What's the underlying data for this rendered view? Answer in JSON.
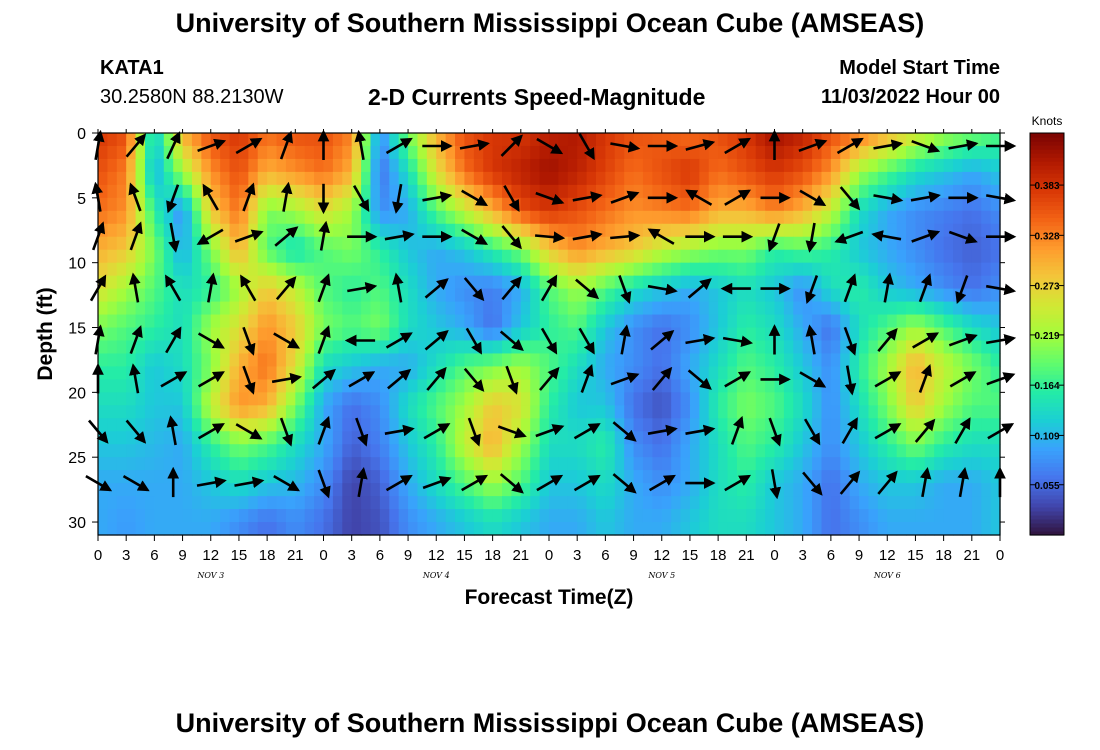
{
  "header": {
    "title": "University of Southern Mississippi Ocean Cube (AMSEAS)",
    "station": "KATA1",
    "coords": "30.2580N  88.2130W",
    "product": "2-D Currents Speed-Magnitude",
    "start_label": "Model Start Time",
    "start_value": "11/03/2022 Hour 00"
  },
  "footer": {
    "title": "University of Southern Mississippi Ocean Cube (AMSEAS)"
  },
  "chart_data": {
    "type": "heatmap",
    "title": "2-D Currents Speed-Magnitude",
    "xlabel": "Forecast Time(Z)",
    "ylabel": "Depth (ft)",
    "x_tick_labels": [
      "0",
      "3",
      "6",
      "9",
      "12",
      "15",
      "18",
      "21",
      "0",
      "3",
      "6",
      "9",
      "12",
      "15",
      "18",
      "21",
      "0",
      "3",
      "6",
      "9",
      "12",
      "15",
      "18",
      "21",
      "0",
      "3",
      "6",
      "9",
      "12",
      "15",
      "18",
      "21",
      "0"
    ],
    "day_labels": [
      "NOV 3",
      "NOV 4",
      "NOV 5",
      "NOV 6"
    ],
    "x_range_hours": [
      0,
      96
    ],
    "y_ticks": [
      0,
      5,
      10,
      15,
      20,
      25,
      30
    ],
    "ylim": [
      0,
      31
    ],
    "y_inverted": true,
    "colorbar": {
      "unit": "Knots",
      "ticks": [
        0.055,
        0.109,
        0.164,
        0.219,
        0.273,
        0.328,
        0.383
      ],
      "range": [
        0.0,
        0.44
      ],
      "colors": [
        "#30123b",
        "#4145ab",
        "#4675ed",
        "#39a2fc",
        "#1bcfd4",
        "#24eca6",
        "#61fc6c",
        "#a4fc3b",
        "#d1e834",
        "#f3c63a",
        "#fe9b2d",
        "#f36315",
        "#d93806",
        "#b11901",
        "#7a0402"
      ]
    },
    "speed_grid_depths_ft": [
      0,
      3,
      6,
      9,
      12,
      15,
      18,
      21,
      24,
      27,
      30
    ],
    "speed_grid_hours": [
      0,
      3,
      6,
      9,
      12,
      15,
      18,
      21,
      24,
      27,
      30,
      33,
      36,
      39,
      42,
      45,
      48,
      51,
      54,
      57,
      60,
      63,
      66,
      69,
      72,
      75,
      78,
      81,
      84,
      87,
      90,
      93,
      96
    ],
    "speed": [
      [
        0.38,
        0.36,
        0.12,
        0.3,
        0.36,
        0.38,
        0.34,
        0.36,
        0.36,
        0.33,
        0.08,
        0.2,
        0.3,
        0.36,
        0.38,
        0.38,
        0.4,
        0.41,
        0.38,
        0.36,
        0.35,
        0.34,
        0.36,
        0.38,
        0.42,
        0.4,
        0.36,
        0.34,
        0.3,
        0.26,
        0.22,
        0.2,
        0.18
      ],
      [
        0.36,
        0.33,
        0.1,
        0.22,
        0.32,
        0.36,
        0.3,
        0.32,
        0.34,
        0.3,
        0.06,
        0.14,
        0.26,
        0.34,
        0.38,
        0.4,
        0.42,
        0.4,
        0.37,
        0.34,
        0.36,
        0.38,
        0.34,
        0.36,
        0.38,
        0.36,
        0.32,
        0.22,
        0.18,
        0.14,
        0.12,
        0.1,
        0.12
      ],
      [
        0.34,
        0.32,
        0.16,
        0.08,
        0.28,
        0.34,
        0.2,
        0.22,
        0.26,
        0.22,
        0.08,
        0.1,
        0.18,
        0.24,
        0.3,
        0.36,
        0.38,
        0.36,
        0.34,
        0.32,
        0.33,
        0.34,
        0.3,
        0.3,
        0.33,
        0.3,
        0.24,
        0.14,
        0.1,
        0.08,
        0.07,
        0.06,
        0.08
      ],
      [
        0.3,
        0.28,
        0.2,
        0.1,
        0.2,
        0.3,
        0.18,
        0.14,
        0.18,
        0.2,
        0.16,
        0.12,
        0.1,
        0.12,
        0.16,
        0.2,
        0.28,
        0.32,
        0.3,
        0.28,
        0.24,
        0.22,
        0.2,
        0.2,
        0.16,
        0.18,
        0.16,
        0.12,
        0.1,
        0.08,
        0.06,
        0.05,
        0.06
      ],
      [
        0.26,
        0.22,
        0.18,
        0.14,
        0.16,
        0.22,
        0.28,
        0.24,
        0.18,
        0.16,
        0.18,
        0.14,
        0.1,
        0.08,
        0.07,
        0.1,
        0.18,
        0.22,
        0.18,
        0.14,
        0.12,
        0.1,
        0.12,
        0.14,
        0.12,
        0.08,
        0.14,
        0.16,
        0.12,
        0.1,
        0.08,
        0.06,
        0.08
      ],
      [
        0.2,
        0.18,
        0.16,
        0.14,
        0.22,
        0.26,
        0.32,
        0.28,
        0.2,
        0.18,
        0.2,
        0.14,
        0.12,
        0.1,
        0.06,
        0.12,
        0.16,
        0.18,
        0.12,
        0.08,
        0.06,
        0.08,
        0.12,
        0.16,
        0.14,
        0.1,
        0.06,
        0.14,
        0.18,
        0.22,
        0.18,
        0.14,
        0.12
      ],
      [
        0.16,
        0.16,
        0.12,
        0.14,
        0.2,
        0.3,
        0.34,
        0.26,
        0.14,
        0.12,
        0.1,
        0.1,
        0.14,
        0.18,
        0.2,
        0.22,
        0.18,
        0.14,
        0.1,
        0.08,
        0.06,
        0.1,
        0.14,
        0.18,
        0.16,
        0.12,
        0.08,
        0.16,
        0.22,
        0.3,
        0.24,
        0.2,
        0.16
      ],
      [
        0.14,
        0.14,
        0.12,
        0.12,
        0.24,
        0.32,
        0.3,
        0.2,
        0.1,
        0.06,
        0.08,
        0.14,
        0.18,
        0.22,
        0.28,
        0.26,
        0.16,
        0.12,
        0.12,
        0.06,
        0.04,
        0.08,
        0.16,
        0.2,
        0.18,
        0.14,
        0.08,
        0.14,
        0.2,
        0.28,
        0.22,
        0.18,
        0.18
      ],
      [
        0.12,
        0.12,
        0.11,
        0.1,
        0.16,
        0.2,
        0.18,
        0.14,
        0.1,
        0.05,
        0.07,
        0.12,
        0.16,
        0.24,
        0.3,
        0.22,
        0.14,
        0.14,
        0.16,
        0.08,
        0.06,
        0.1,
        0.14,
        0.18,
        0.16,
        0.12,
        0.08,
        0.12,
        0.16,
        0.2,
        0.16,
        0.14,
        0.14
      ],
      [
        0.1,
        0.1,
        0.1,
        0.1,
        0.12,
        0.14,
        0.12,
        0.11,
        0.08,
        0.03,
        0.05,
        0.1,
        0.14,
        0.18,
        0.22,
        0.18,
        0.12,
        0.12,
        0.14,
        0.1,
        0.08,
        0.1,
        0.14,
        0.16,
        0.12,
        0.1,
        0.06,
        0.1,
        0.12,
        0.12,
        0.1,
        0.1,
        0.12
      ],
      [
        0.1,
        0.09,
        0.1,
        0.1,
        0.1,
        0.08,
        0.06,
        0.08,
        0.06,
        0.03,
        0.04,
        0.08,
        0.1,
        0.12,
        0.14,
        0.12,
        0.1,
        0.1,
        0.12,
        0.1,
        0.1,
        0.12,
        0.14,
        0.14,
        0.12,
        0.1,
        0.06,
        0.08,
        0.1,
        0.1,
        0.1,
        0.1,
        0.12
      ]
    ],
    "vector_grid_hours": [
      0,
      4,
      8,
      12,
      16,
      20,
      24,
      28,
      32,
      36,
      40,
      44,
      48,
      52,
      56,
      60,
      64,
      68,
      72,
      76,
      80,
      84,
      88,
      92,
      96
    ],
    "vector_grid_depths_ft": [
      1,
      5,
      8,
      12,
      16,
      19,
      23,
      27
    ],
    "directions_deg": [
      [
        10,
        40,
        25,
        70,
        60,
        20,
        0,
        350,
        60,
        90,
        80,
        45,
        120,
        150,
        100,
        90,
        75,
        60,
        0,
        70,
        60,
        80,
        110,
        80,
        90
      ],
      [
        350,
        340,
        200,
        330,
        20,
        10,
        180,
        150,
        190,
        80,
        120,
        150,
        110,
        80,
        70,
        90,
        300,
        60,
        90,
        120,
        140,
        100,
        80,
        90,
        100
      ],
      [
        20,
        20,
        170,
        240,
        70,
        50,
        10,
        90,
        80,
        90,
        120,
        140,
        95,
        80,
        85,
        300,
        90,
        90,
        200,
        190,
        250,
        280,
        70,
        110,
        90
      ],
      [
        30,
        350,
        330,
        10,
        330,
        40,
        20,
        80,
        350,
        50,
        140,
        40,
        30,
        130,
        160,
        100,
        50,
        270,
        90,
        200,
        20,
        10,
        20,
        200,
        100
      ],
      [
        10,
        20,
        30,
        120,
        160,
        120,
        20,
        270,
        60,
        50,
        150,
        130,
        150,
        150,
        10,
        50,
        80,
        100,
        0,
        350,
        160,
        40,
        60,
        70,
        80
      ],
      [
        0,
        350,
        60,
        60,
        160,
        80,
        50,
        60,
        50,
        40,
        140,
        160,
        40,
        20,
        70,
        40,
        130,
        60,
        90,
        120,
        170,
        60,
        20,
        60,
        70
      ],
      [
        140,
        140,
        350,
        60,
        120,
        160,
        20,
        160,
        80,
        60,
        160,
        110,
        70,
        60,
        130,
        80,
        80,
        20,
        160,
        150,
        30,
        60,
        40,
        30,
        60
      ],
      [
        120,
        120,
        360,
        80,
        80,
        120,
        160,
        10,
        60,
        70,
        60,
        130,
        60,
        60,
        130,
        60,
        90,
        60,
        170,
        140,
        40,
        40,
        10,
        10,
        360
      ]
    ]
  }
}
